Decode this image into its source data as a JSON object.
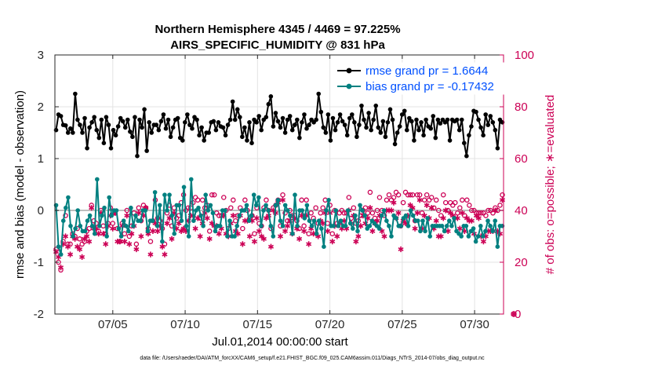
{
  "chart_data": {
    "type": "line",
    "title": "Northern Hemisphere 4345 / 4469 = 97.225%",
    "subtitle": "AIRS_SPECIFIC_HUMIDITY @ 831 hPa",
    "xlabel": "Jul.01,2014 00:00:00 start",
    "ylabel": "rmse and bias (model - observation)",
    "y2label": "# of obs: o=possible; ∗=evaluated",
    "footnote": "data file: /Users/raeder/DAI/ATM_forcXX/CAM6_setup/f.e21.FHIST_BGC.f09_025.CAM6assim.011/Diags_NTrS_2014-07/obs_diag_output.nc",
    "xlim": [
      1,
      32
    ],
    "ylim": [
      -2,
      3
    ],
    "y2lim": [
      0,
      100
    ],
    "x_ticks": [
      5,
      10,
      15,
      20,
      25,
      30
    ],
    "x_tick_labels": [
      "07/05",
      "07/10",
      "07/15",
      "07/20",
      "07/25",
      "07/30"
    ],
    "y_ticks": [
      -2,
      -1,
      0,
      1,
      2,
      3
    ],
    "y_tick_labels": [
      "-2",
      "-1",
      "0",
      "1",
      "2",
      "3"
    ],
    "y2_ticks": [
      0,
      20,
      40,
      60,
      80,
      100
    ],
    "y2_tick_labels": [
      "0",
      "20",
      "40",
      "60",
      "80",
      "100"
    ],
    "grid": true,
    "legend_position": "top-right",
    "colors": {
      "rmse": "#000000",
      "bias": "#008080",
      "obs": "#cc0055",
      "legend_text": "#0050ff"
    },
    "series": [
      {
        "name": "rmse grand pr = 1.6644",
        "axis": "left",
        "values": [
          1.55,
          1.85,
          1.82,
          1.65,
          1.64,
          1.5,
          1.58,
          1.5,
          2.25,
          1.75,
          1.65,
          1.5,
          1.78,
          1.2,
          1.6,
          1.7,
          1.8,
          1.55,
          1.4,
          1.75,
          1.3,
          1.8,
          1.65,
          1.2,
          1.55,
          1.45,
          1.62,
          1.78,
          1.72,
          1.6,
          1.75,
          1.52,
          1.42,
          1.8,
          1.05,
          1.75,
          1.6,
          1.95,
          1.15,
          1.7,
          1.5,
          1.65,
          1.65,
          1.55,
          1.72,
          1.85,
          1.58,
          1.75,
          1.42,
          1.6,
          1.75,
          1.78,
          1.4,
          1.35,
          1.7,
          1.85,
          1.65,
          1.58,
          1.8,
          1.75,
          1.45,
          1.6,
          1.35,
          1.5,
          1.5,
          1.7,
          1.72,
          1.55,
          1.7,
          1.62,
          1.6,
          1.45,
          1.65,
          1.75,
          2.1,
          1.75,
          1.95,
          1.8,
          1.42,
          1.6,
          1.35,
          1.7,
          1.3,
          1.75,
          1.7,
          1.82,
          1.55,
          1.75,
          1.8,
          2.05,
          2.2,
          1.62,
          1.88,
          1.72,
          1.6,
          1.78,
          1.5,
          1.75,
          1.82,
          1.55,
          1.65,
          1.75,
          1.4,
          1.7,
          1.85,
          1.58,
          1.65,
          1.75,
          1.7,
          1.75,
          2.25,
          1.9,
          1.6,
          1.5,
          1.85,
          1.35,
          1.78,
          1.55,
          1.7,
          1.85,
          1.72,
          1.65,
          1.45,
          1.78,
          1.85,
          1.7,
          1.42,
          1.65,
          2.02,
          1.75,
          1.6,
          1.88,
          1.55,
          1.75,
          2.02,
          1.6,
          1.5,
          1.72,
          1.42,
          1.7,
          1.95,
          1.75,
          1.28,
          1.5,
          1.62,
          1.85,
          1.92,
          1.55,
          1.78,
          1.72,
          1.35,
          1.75,
          1.55,
          1.7,
          1.45,
          1.75,
          1.62,
          1.58,
          1.82,
          1.4,
          1.75,
          1.68,
          1.75,
          1.7,
          1.75,
          1.35,
          1.75,
          1.72,
          1.75,
          1.55,
          1.75,
          1.3,
          1.05,
          1.45,
          1.62,
          1.92,
          1.9,
          1.75,
          1.6,
          1.45,
          1.85,
          1.65,
          1.82,
          1.7,
          1.55,
          1.2,
          1.75,
          1.7
        ]
      },
      {
        "name": "bias grand pr = -0.17432",
        "axis": "left",
        "values": [
          0.1,
          -0.7,
          -0.85,
          -0.2,
          0.05,
          0.25,
          -0.3,
          -0.5,
          -0.35,
          0.0,
          -0.3,
          -0.4,
          -0.4,
          -0.2,
          -0.1,
          -0.3,
          -0.45,
          0.6,
          -0.3,
          -0.1,
          0.05,
          -0.5,
          0.25,
          -0.1,
          0.0,
          0.0,
          -0.35,
          -0.5,
          -0.2,
          -0.3,
          -0.4,
          0.05,
          -0.3,
          -0.1,
          -0.2,
          -0.2,
          0.0,
          0.0,
          -0.4,
          -0.2,
          -0.2,
          0.35,
          -0.3,
          0.1,
          -0.6,
          0.3,
          0.0,
          0.3,
          -0.1,
          -0.45,
          0.1,
          0.1,
          -0.2,
          0.45,
          -0.3,
          -0.5,
          0.6,
          -0.2,
          0.0,
          0.05,
          -0.1,
          -0.3,
          0.3,
          0.0,
          0.1,
          -0.05,
          -0.4,
          -0.3,
          -0.3,
          0.0,
          0.0,
          -0.5,
          -0.2,
          -0.5,
          -0.5,
          -0.3,
          -0.1,
          0.0,
          0.0,
          0.1,
          -0.2,
          -0.1,
          0.3,
          0.1,
          0.25,
          -0.3,
          0.0,
          0.1,
          0.0,
          -0.3,
          -0.5,
          0.1,
          0.2,
          -0.2,
          -0.3,
          0.1,
          0.0,
          -0.1,
          -0.45,
          0.3,
          -0.3,
          0.0,
          0.0,
          -0.15,
          0.1,
          -0.2,
          -0.3,
          -0.2,
          -0.45,
          -0.2,
          -0.35,
          -0.7,
          0.0,
          0.2,
          -0.3,
          -0.3,
          0.0,
          -0.3,
          -0.2,
          -0.3,
          -0.3,
          0.0,
          -0.25,
          -0.35,
          -0.1,
          -0.4,
          0.1,
          0.0,
          -0.1,
          -0.35,
          -0.3,
          -0.2,
          -0.25,
          -0.3,
          -0.35,
          -0.1,
          0.0,
          -0.2,
          -0.3,
          -0.5,
          -0.1,
          -0.15,
          -0.3,
          -0.3,
          -0.15,
          -0.1,
          -0.3,
          0.0,
          -0.1,
          -0.2,
          -0.2,
          -0.4,
          -0.2,
          -0.4,
          -0.15,
          -0.5,
          -0.3,
          -0.3,
          -0.3,
          -0.3,
          -0.3,
          -0.4,
          -0.3,
          -0.2,
          -0.3,
          -0.15,
          -0.4,
          -0.45,
          -0.5,
          -0.3,
          -0.3,
          -0.5,
          -0.4,
          -0.35,
          -0.6,
          -0.5,
          -0.3,
          -0.5,
          -0.4,
          -0.2,
          -0.3,
          -0.4,
          -0.2,
          -0.7,
          -0.3,
          -0.3
        ]
      },
      {
        "name": "obs possible",
        "axis": "right",
        "marker": "circle",
        "values": [
          25,
          20,
          17,
          28,
          38,
          27,
          27,
          31,
          30,
          33,
          29,
          27,
          28,
          32,
          33,
          42,
          36,
          35,
          32,
          40,
          34,
          31,
          35,
          41,
          35,
          39,
          33,
          28,
          35,
          31,
          40,
          30,
          34,
          39,
          27,
          41,
          36,
          42,
          41,
          33,
          28,
          36,
          44,
          37,
          36,
          33,
          27,
          39,
          42,
          34,
          41,
          37,
          38,
          43,
          46,
          40,
          41,
          41,
          43,
          45,
          44,
          37,
          44,
          41,
          42,
          32,
          46,
          46,
          39,
          38,
          38,
          45,
          40,
          33,
          41,
          44,
          36,
          38,
          41,
          33,
          44,
          40,
          37,
          38,
          31,
          41,
          35,
          34,
          41,
          44,
          40,
          33,
          41,
          42,
          44,
          34,
          46,
          39,
          36,
          40,
          38,
          38,
          36,
          33,
          44,
          34,
          44,
          31,
          39,
          37,
          41,
          35,
          39,
          41,
          44,
          35,
          42,
          31,
          40,
          35,
          39,
          40,
          39,
          39,
          45,
          37,
          41,
          35,
          36,
          38,
          40,
          41,
          39,
          47,
          39,
          37,
          40,
          45,
          40,
          38,
          44,
          46,
          44,
          45,
          47,
          46,
          34,
          43,
          47,
          46,
          46,
          46,
          36,
          46,
          46,
          39,
          44,
          46,
          44,
          45,
          41,
          44,
          40,
          38,
          46,
          43,
          40,
          43,
          42,
          43,
          39,
          41,
          44,
          38,
          44,
          42,
          40,
          40,
          39,
          39,
          39,
          39,
          38,
          40,
          40,
          39,
          41,
          40,
          42,
          46
        ]
      },
      {
        "name": "obs evaluated",
        "axis": "right",
        "marker": "star",
        "values": [
          24,
          22,
          18,
          27,
          30,
          26,
          23,
          30,
          29,
          26,
          25,
          22,
          29,
          30,
          28,
          41,
          33,
          33,
          31,
          39,
          31,
          27,
          34,
          38,
          33,
          39,
          28,
          28,
          34,
          28,
          38,
          27,
          31,
          34,
          25,
          39,
          30,
          38,
          41,
          31,
          23,
          32,
          35,
          32,
          34,
          26,
          23,
          35,
          37,
          29,
          39,
          33,
          35,
          32,
          33,
          32,
          36,
          38,
          38,
          33,
          37,
          30,
          35,
          39,
          37,
          29,
          35,
          34,
          34,
          31,
          33,
          38,
          31,
          30,
          35,
          38,
          32,
          31,
          38,
          27,
          36,
          36,
          30,
          36,
          28,
          37,
          32,
          30,
          29,
          37,
          38,
          26,
          40,
          39,
          43,
          30,
          44,
          32,
          34,
          36,
          31,
          37,
          33,
          29,
          38,
          32,
          38,
          27,
          33,
          31,
          31,
          30,
          36,
          35,
          39,
          32,
          39,
          28,
          34,
          30,
          35,
          33,
          36,
          33,
          40,
          35,
          38,
          28,
          30,
          34,
          38,
          35,
          37,
          41,
          32,
          35,
          36,
          38,
          32,
          30,
          40,
          40,
          40,
          43,
          37,
          39,
          25,
          36,
          35,
          38,
          42,
          41,
          33,
          39,
          44,
          33,
          38,
          42,
          37,
          41,
          33,
          36,
          30,
          30,
          37,
          40,
          32,
          39,
          38,
          37,
          37,
          33,
          39,
          32,
          37,
          36,
          36,
          31,
          38,
          37,
          30,
          28,
          30,
          32,
          32,
          32,
          40,
          32,
          31,
          44
        ]
      }
    ],
    "final_obs_marker_value": 0
  }
}
